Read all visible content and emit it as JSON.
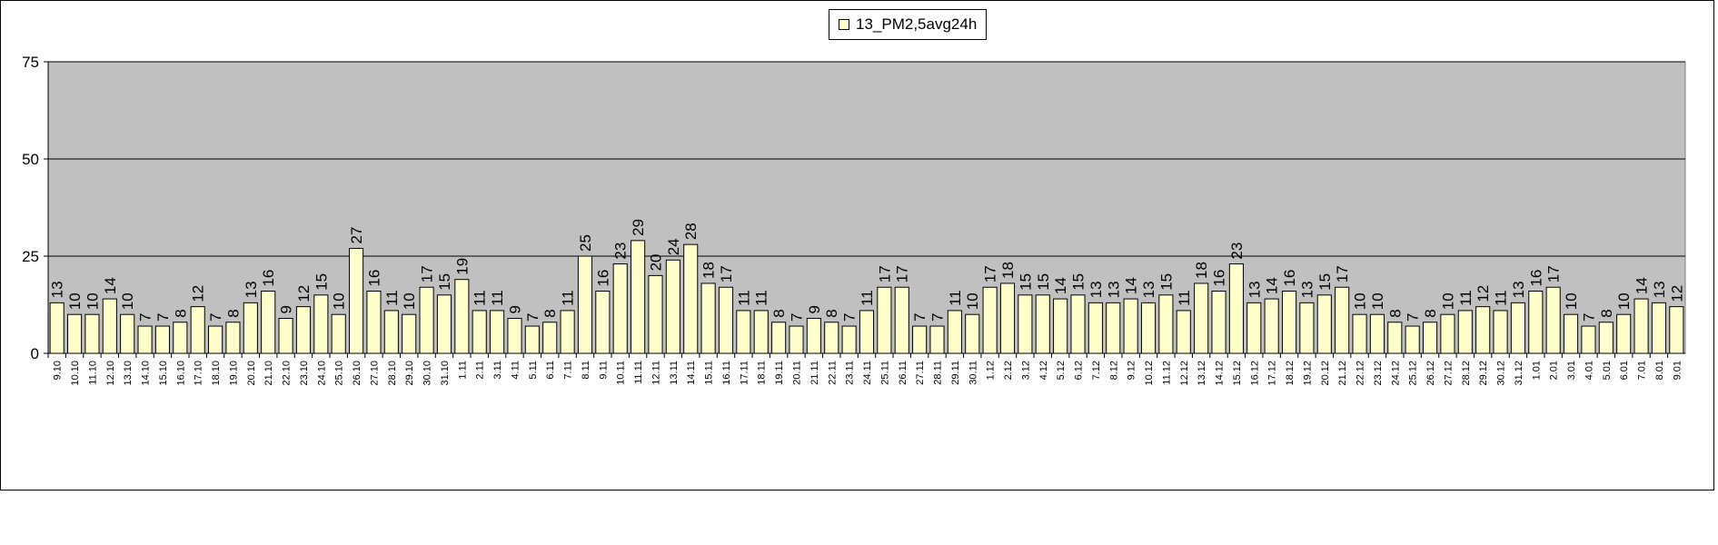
{
  "chart_data": {
    "type": "bar",
    "title": "",
    "xlabel": "",
    "ylabel": "",
    "ylim": [
      0,
      75
    ],
    "yticks": [
      "0",
      "25",
      "50",
      "75"
    ],
    "grid": true,
    "legend_position": "top-center",
    "series": [
      {
        "name": "13_PM2,5avg24h",
        "color": "#ffffcc",
        "values": [
          13,
          10,
          10,
          14,
          10,
          7,
          7,
          8,
          12,
          7,
          8,
          13,
          16,
          9,
          12,
          15,
          10,
          27,
          16,
          11,
          10,
          17,
          15,
          19,
          11,
          11,
          9,
          7,
          8,
          11,
          25,
          16,
          23,
          29,
          20,
          24,
          28,
          18,
          17,
          11,
          11,
          8,
          7,
          9,
          8,
          7,
          11,
          17,
          17,
          7,
          7,
          11,
          10,
          17,
          18,
          15,
          15,
          14,
          15,
          13,
          13,
          14,
          13,
          15,
          11,
          18,
          16,
          23,
          13,
          14,
          16,
          13,
          15,
          17,
          10,
          10,
          8,
          7,
          8,
          10,
          11,
          12,
          11,
          13,
          16,
          17,
          10,
          7,
          8,
          10,
          14,
          13,
          12
        ]
      }
    ],
    "categories": [
      "9.10",
      "10.10",
      "11.10",
      "12.10",
      "13.10",
      "14.10",
      "15.10",
      "16.10",
      "17.10",
      "18.10",
      "19.10",
      "20.10",
      "21.10",
      "22.10",
      "23.10",
      "24.10",
      "25.10",
      "26.10",
      "27.10",
      "28.10",
      "29.10",
      "30.10",
      "31.10",
      "1.11",
      "2.11",
      "3.11",
      "4.11",
      "5.11",
      "6.11",
      "7.11",
      "8.11",
      "9.11",
      "10.11",
      "11.11",
      "12.11",
      "13.11",
      "14.11",
      "15.11",
      "16.11",
      "17.11",
      "18.11",
      "19.11",
      "20.11",
      "21.11",
      "22.11",
      "23.11",
      "24.11",
      "25.11",
      "26.11",
      "27.11",
      "28.11",
      "29.11",
      "30.11",
      "1.12",
      "2.12",
      "3.12",
      "4.12",
      "5.12",
      "6.12",
      "7.12",
      "8.12",
      "9.12",
      "10.12",
      "11.12",
      "12.12",
      "13.12",
      "14.12",
      "15.12",
      "16.12",
      "17.12",
      "18.12",
      "19.12",
      "20.12",
      "21.12",
      "22.12",
      "23.12",
      "24.12",
      "25.12",
      "26.12",
      "27.12",
      "28.12",
      "29.12",
      "30.12",
      "31.12",
      "1.01",
      "2.01",
      "3.01",
      "4.01",
      "5.01",
      "6.01",
      "7.01",
      "8.01",
      "9.01"
    ],
    "colors": {
      "plot_background": "#c0c0c0",
      "bar_fill": "#ffffcc",
      "bar_stroke": "#000000"
    }
  }
}
